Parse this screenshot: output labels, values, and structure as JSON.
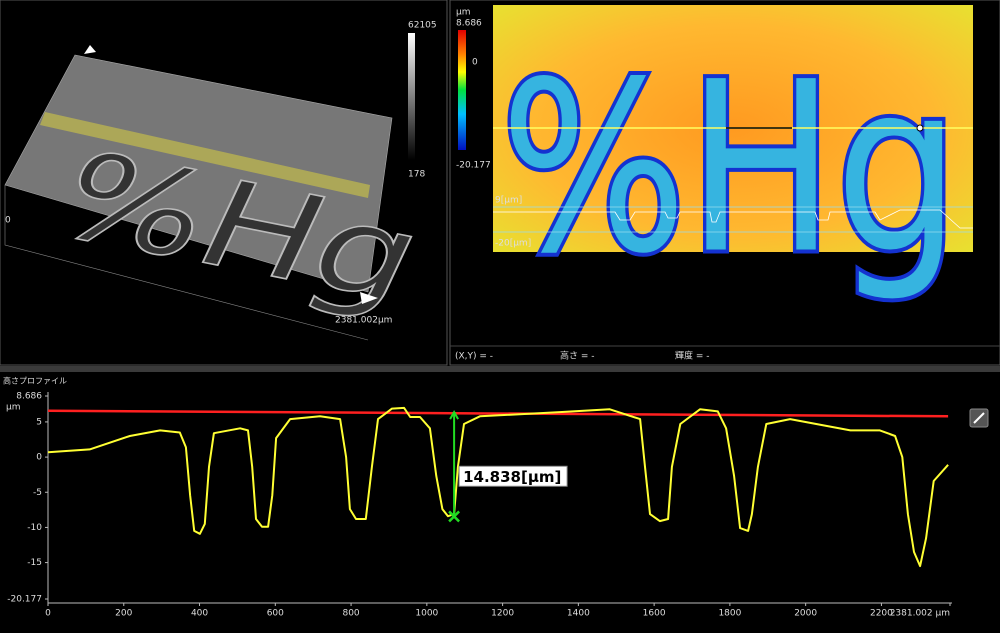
{
  "view_3d": {
    "text": "%Hg",
    "colorbar_max": "62105",
    "colorbar_min": "178",
    "origin_label": "0",
    "x_extent_label": "2381.002μm"
  },
  "height_map": {
    "text": "%Hg",
    "unit": "μm",
    "colorbar_max": "8.686",
    "colorbar_mid": "0",
    "colorbar_min": "-20.177",
    "profile_top": "9[μm]",
    "profile_bottom": "-20[μm]"
  },
  "status_bar": [
    "(X,Y) = -",
    "高さ = -",
    "輝度 = -"
  ],
  "chart_data": {
    "type": "line",
    "title": "高さプロファイル",
    "y_unit": "μm",
    "x": [
      0,
      110,
      216,
      296,
      348,
      364,
      375,
      386,
      401,
      414,
      425,
      438,
      507,
      528,
      539,
      549,
      565,
      581,
      592,
      602,
      639,
      718,
      771,
      787,
      797,
      813,
      839,
      855,
      871,
      908,
      940,
      956,
      982,
      1008,
      1025,
      1041,
      1056,
      1072,
      1082,
      1098,
      1140,
      1351,
      1483,
      1563,
      1576,
      1589,
      1615,
      1637,
      1647,
      1669,
      1721,
      1768,
      1790,
      1811,
      1827,
      1848,
      1858,
      1874,
      1896,
      1959,
      2118,
      2196,
      2236,
      2255,
      2270,
      2286,
      2302,
      2318,
      2338,
      2376
    ],
    "series": [
      {
        "color": "#ffff33",
        "values": [
          0.7,
          1.1,
          3.0,
          3.8,
          3.5,
          1.4,
          -5.4,
          -10.5,
          -10.9,
          -9.5,
          -1.4,
          3.4,
          4.1,
          3.8,
          -1.4,
          -8.8,
          -9.9,
          -9.9,
          -5.4,
          2.7,
          5.4,
          5.8,
          5.4,
          0,
          -7.4,
          -8.8,
          -8.8,
          -1.4,
          5.4,
          6.9,
          7.0,
          5.7,
          5.7,
          4.1,
          -2.7,
          -7.4,
          -8.4,
          -8.1,
          -1.4,
          4.7,
          5.8,
          6.4,
          6.8,
          5.4,
          -1.4,
          -8.1,
          -9.1,
          -8.8,
          -1.4,
          4.7,
          6.8,
          6.5,
          4.1,
          -2.7,
          -10.1,
          -10.5,
          -8.1,
          -1.4,
          4.7,
          5.4,
          3.8,
          3.8,
          3.0,
          0,
          -8.1,
          -13.5,
          -15.5,
          -11.5,
          -3.4,
          -1.1
        ]
      }
    ],
    "reference_line": {
      "color": "#ff2020",
      "x": [
        0,
        2376
      ],
      "values": [
        6.6,
        5.8
      ]
    },
    "measurement": {
      "color": "#22dd22",
      "x": 1072,
      "from": 6.4,
      "to": -8.438,
      "label": "14.838[μm]"
    },
    "xlim": [
      0,
      2381.002
    ],
    "xticks": [
      0,
      200,
      400,
      600,
      800,
      1000,
      1200,
      1400,
      1600,
      1800,
      2000,
      2200,
      {
        "value": 2381.002,
        "label": "2381.002 μm"
      }
    ],
    "ylim": [
      -20.177,
      8.686
    ],
    "yticks": [
      -20.177,
      -15,
      -10,
      -5,
      0,
      5,
      8.686
    ]
  }
}
